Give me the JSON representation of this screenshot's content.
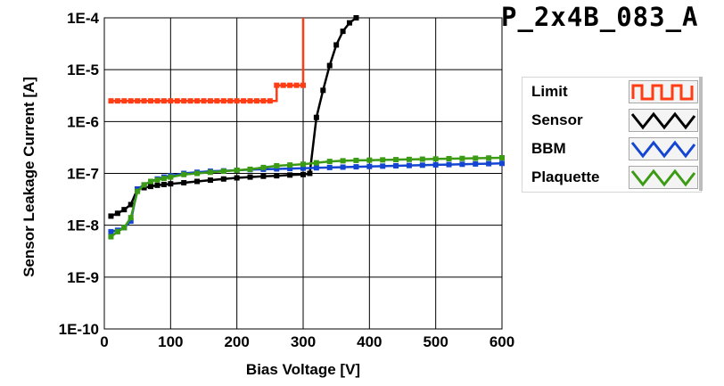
{
  "chart_data": {
    "type": "line",
    "title": "P_2x4B_083_A",
    "xlabel": "Bias Voltage [V]",
    "ylabel": "Sensor Leakage Current [A]",
    "xlim": [
      0,
      600
    ],
    "ylim": [
      1e-10,
      0.0001
    ],
    "y_scale": "log",
    "grid": true,
    "legend_position": "right",
    "x_ticks": [
      "0",
      "100",
      "200",
      "300",
      "400",
      "500",
      "600"
    ],
    "x_tick_values": [
      0,
      100,
      200,
      300,
      400,
      500,
      600
    ],
    "y_ticks": [
      "1E-10",
      "1E-9",
      "1E-8",
      "1E-7",
      "1E-6",
      "1E-5",
      "1E-4"
    ],
    "y_tick_values": [
      1e-10,
      1e-09,
      1e-08,
      1e-07,
      1e-06,
      1e-05,
      0.0001
    ],
    "series": [
      {
        "name": "Limit",
        "color": "#ff3c14",
        "step": true,
        "x": [
          10,
          20,
          30,
          40,
          50,
          60,
          70,
          80,
          90,
          100,
          110,
          120,
          130,
          140,
          150,
          160,
          170,
          180,
          190,
          200,
          210,
          220,
          230,
          240,
          250,
          260,
          270,
          280,
          290,
          300,
          300
        ],
        "y": [
          2.5e-06,
          2.5e-06,
          2.5e-06,
          2.5e-06,
          2.5e-06,
          2.5e-06,
          2.5e-06,
          2.5e-06,
          2.5e-06,
          2.5e-06,
          2.5e-06,
          2.5e-06,
          2.5e-06,
          2.5e-06,
          2.5e-06,
          2.5e-06,
          2.5e-06,
          2.5e-06,
          2.5e-06,
          2.5e-06,
          2.5e-06,
          2.5e-06,
          2.5e-06,
          2.5e-06,
          2.5e-06,
          5e-06,
          5e-06,
          5e-06,
          5e-06,
          5e-06,
          0.0001
        ]
      },
      {
        "name": "Sensor",
        "color": "#000000",
        "step": false,
        "x": [
          10,
          20,
          30,
          40,
          50,
          60,
          70,
          80,
          90,
          100,
          120,
          140,
          160,
          180,
          200,
          220,
          240,
          260,
          280,
          300,
          310,
          320,
          330,
          340,
          350,
          360,
          370,
          380
        ],
        "y": [
          1.5e-08,
          1.7e-08,
          2e-08,
          2.5e-08,
          5e-08,
          5.3e-08,
          5.6e-08,
          5.9e-08,
          6.1e-08,
          6.3e-08,
          6.6e-08,
          7e-08,
          7.4e-08,
          7.8e-08,
          8.2e-08,
          8.5e-08,
          8.8e-08,
          9e-08,
          9.3e-08,
          9.5e-08,
          1e-07,
          1.2e-06,
          4e-06,
          1.2e-05,
          3e-05,
          5.5e-05,
          8e-05,
          0.0001
        ]
      },
      {
        "name": "BBM",
        "color": "#1446d2",
        "step": false,
        "x": [
          10,
          20,
          30,
          40,
          50,
          60,
          70,
          80,
          90,
          100,
          120,
          140,
          160,
          180,
          200,
          220,
          240,
          260,
          280,
          300,
          320,
          340,
          360,
          380,
          400,
          420,
          440,
          460,
          480,
          500,
          520,
          540,
          560,
          580,
          600
        ],
        "y": [
          7.5e-09,
          8e-09,
          9e-09,
          1.2e-08,
          5e-08,
          6e-08,
          7e-08,
          7.8e-08,
          8.5e-08,
          9e-08,
          1e-07,
          1.05e-07,
          1.1e-07,
          1.12e-07,
          1.15e-07,
          1.18e-07,
          1.2e-07,
          1.22e-07,
          1.24e-07,
          1.26e-07,
          1.28e-07,
          1.3e-07,
          1.32e-07,
          1.34e-07,
          1.36e-07,
          1.38e-07,
          1.4e-07,
          1.42e-07,
          1.44e-07,
          1.46e-07,
          1.48e-07,
          1.5e-07,
          1.52e-07,
          1.54e-07,
          1.56e-07
        ]
      },
      {
        "name": "Plaquette",
        "color": "#3c9b14",
        "step": false,
        "x": [
          10,
          20,
          30,
          40,
          50,
          60,
          70,
          80,
          90,
          100,
          120,
          140,
          160,
          180,
          200,
          220,
          240,
          260,
          280,
          300,
          320,
          340,
          360,
          380,
          400,
          420,
          440,
          460,
          480,
          500,
          520,
          540,
          560,
          580,
          600
        ],
        "y": [
          6e-09,
          7.5e-09,
          9e-09,
          1.4e-08,
          4.5e-08,
          6e-08,
          7e-08,
          7.5e-08,
          8e-08,
          8.5e-08,
          9.5e-08,
          1e-07,
          1.05e-07,
          1.1e-07,
          1.15e-07,
          1.2e-07,
          1.3e-07,
          1.4e-07,
          1.45e-07,
          1.5e-07,
          1.6e-07,
          1.7e-07,
          1.75e-07,
          1.78e-07,
          1.8e-07,
          1.82e-07,
          1.84e-07,
          1.86e-07,
          1.88e-07,
          1.9e-07,
          1.92e-07,
          1.94e-07,
          1.96e-07,
          1.98e-07,
          2e-07
        ]
      }
    ]
  },
  "legend": {
    "items": [
      {
        "label": "Limit",
        "color": "#ff3c14"
      },
      {
        "label": "Sensor",
        "color": "#000000"
      },
      {
        "label": "BBM",
        "color": "#1446d2"
      },
      {
        "label": "Plaquette",
        "color": "#3c9b14"
      }
    ]
  }
}
